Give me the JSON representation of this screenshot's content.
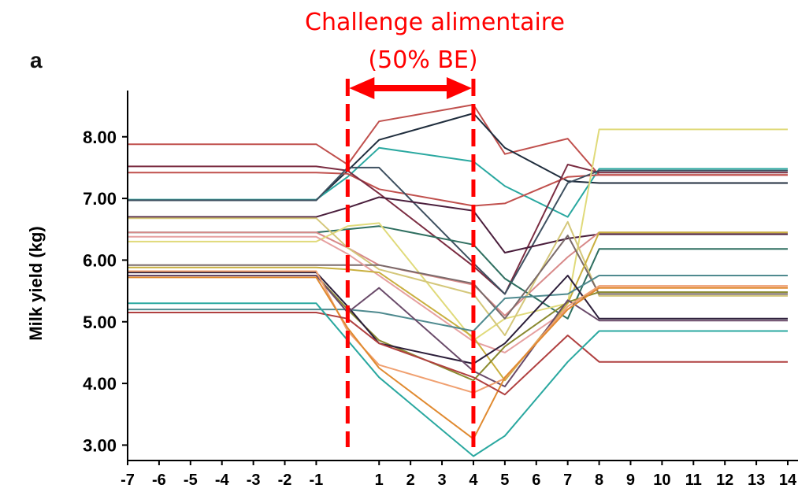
{
  "panel_label": "a",
  "annotation": {
    "line1": "Challenge alimentaire",
    "line2": "(50% BE)",
    "color": "#ff0000",
    "start_x": 0,
    "end_x": 4
  },
  "chart_data": {
    "type": "line",
    "title": "",
    "xlabel": "",
    "ylabel": "Milk yield (kg)",
    "ylim": [
      2.75,
      8.75
    ],
    "yticks": [
      3.0,
      4.0,
      5.0,
      6.0,
      7.0,
      8.0
    ],
    "ytick_labels": [
      "3.00",
      "4.00",
      "5.00",
      "6.00",
      "7.00",
      "8.00"
    ],
    "xlim": [
      -7,
      14
    ],
    "xticks": [
      -7,
      -6,
      -5,
      -4,
      -3,
      -2,
      -1,
      1,
      2,
      3,
      4,
      5,
      6,
      7,
      8,
      9,
      10,
      11,
      12,
      13,
      14
    ],
    "xtick_labels": [
      "-7",
      "-6",
      "-5",
      "-4",
      "-3",
      "-2",
      "-1",
      "1",
      "2",
      "3",
      "4",
      "5",
      "6",
      "7",
      "8",
      "9",
      "10",
      "11",
      "12",
      "13",
      "14"
    ],
    "grid": false,
    "legend": "none",
    "x": [
      -7,
      -1,
      0,
      1,
      4,
      5,
      7,
      8,
      14
    ],
    "series": [
      {
        "color": "#c0504d",
        "values": [
          7.88,
          7.88,
          7.55,
          8.25,
          8.52,
          7.72,
          7.97,
          7.38,
          7.38
        ]
      },
      {
        "color": "#1f2d3d",
        "values": [
          6.97,
          6.97,
          7.45,
          7.95,
          8.38,
          7.82,
          7.28,
          7.25,
          7.25
        ]
      },
      {
        "color": "#2aa8a0",
        "values": [
          6.98,
          6.98,
          7.35,
          7.82,
          7.6,
          7.2,
          6.7,
          7.48,
          7.48
        ]
      },
      {
        "color": "#c0504d",
        "values": [
          7.42,
          7.42,
          7.4,
          7.15,
          6.88,
          6.92,
          7.35,
          7.38,
          7.38
        ]
      },
      {
        "color": "#7b2d42",
        "values": [
          7.52,
          7.52,
          7.45,
          7.08,
          5.9,
          5.45,
          7.55,
          7.42,
          7.42
        ]
      },
      {
        "color": "#3e5060",
        "values": [
          6.97,
          6.97,
          7.5,
          7.5,
          5.95,
          5.45,
          7.25,
          7.45,
          7.45
        ]
      },
      {
        "color": "#4a1e3c",
        "values": [
          6.7,
          6.7,
          6.85,
          7.02,
          6.8,
          6.12,
          6.35,
          6.42,
          6.42
        ]
      },
      {
        "color": "#2f6f60",
        "values": [
          6.45,
          6.45,
          6.5,
          6.55,
          6.25,
          5.7,
          5.05,
          6.18,
          6.18
        ]
      },
      {
        "color": "#d88a8a",
        "values": [
          6.45,
          6.45,
          6.2,
          5.92,
          5.6,
          5.1,
          6.05,
          6.45,
          6.45
        ]
      },
      {
        "color": "#e0da7a",
        "values": [
          6.3,
          6.3,
          6.55,
          6.6,
          4.7,
          5.05,
          5.3,
          8.12,
          8.12
        ]
      },
      {
        "color": "#d4c77a",
        "values": [
          6.68,
          6.68,
          6.2,
          5.85,
          5.45,
          4.78,
          6.62,
          5.42,
          5.42
        ]
      },
      {
        "color": "#7a6a6a",
        "values": [
          5.92,
          5.92,
          5.92,
          5.92,
          5.62,
          5.05,
          6.4,
          5.45,
          5.45
        ]
      },
      {
        "color": "#e6a0a0",
        "values": [
          6.38,
          6.38,
          6.1,
          5.75,
          4.68,
          4.5,
          5.2,
          5.58,
          5.58
        ]
      },
      {
        "color": "#c9b040",
        "values": [
          5.88,
          5.88,
          5.85,
          5.8,
          4.75,
          4.05,
          5.3,
          6.45,
          6.45
        ]
      },
      {
        "color": "#4f8a8f",
        "values": [
          5.2,
          5.2,
          5.2,
          5.15,
          4.85,
          5.38,
          5.45,
          5.75,
          5.75
        ]
      },
      {
        "color": "#8a8a30",
        "values": [
          5.75,
          5.75,
          5.2,
          4.7,
          4.05,
          4.6,
          5.32,
          5.48,
          5.48
        ]
      },
      {
        "color": "#2c1e3a",
        "values": [
          5.8,
          5.8,
          5.25,
          4.65,
          4.32,
          4.65,
          5.75,
          5.05,
          5.05
        ]
      },
      {
        "color": "#6a4b6a",
        "values": [
          5.75,
          5.75,
          5.15,
          5.55,
          4.2,
          3.95,
          5.35,
          5.02,
          5.02
        ]
      },
      {
        "color": "#f0a070",
        "values": [
          5.82,
          5.82,
          4.85,
          4.3,
          3.85,
          4.08,
          5.25,
          5.58,
          5.58
        ]
      },
      {
        "color": "#e08a30",
        "values": [
          5.72,
          5.72,
          4.9,
          4.25,
          3.1,
          4.1,
          5.2,
          5.55,
          5.55
        ]
      },
      {
        "color": "#b04040",
        "values": [
          5.15,
          5.15,
          5.05,
          4.65,
          4.1,
          3.82,
          4.78,
          4.35,
          4.35
        ]
      },
      {
        "color": "#2aa8a0",
        "values": [
          5.3,
          5.3,
          4.7,
          4.1,
          2.82,
          3.15,
          4.35,
          4.85,
          4.85
        ]
      }
    ]
  }
}
